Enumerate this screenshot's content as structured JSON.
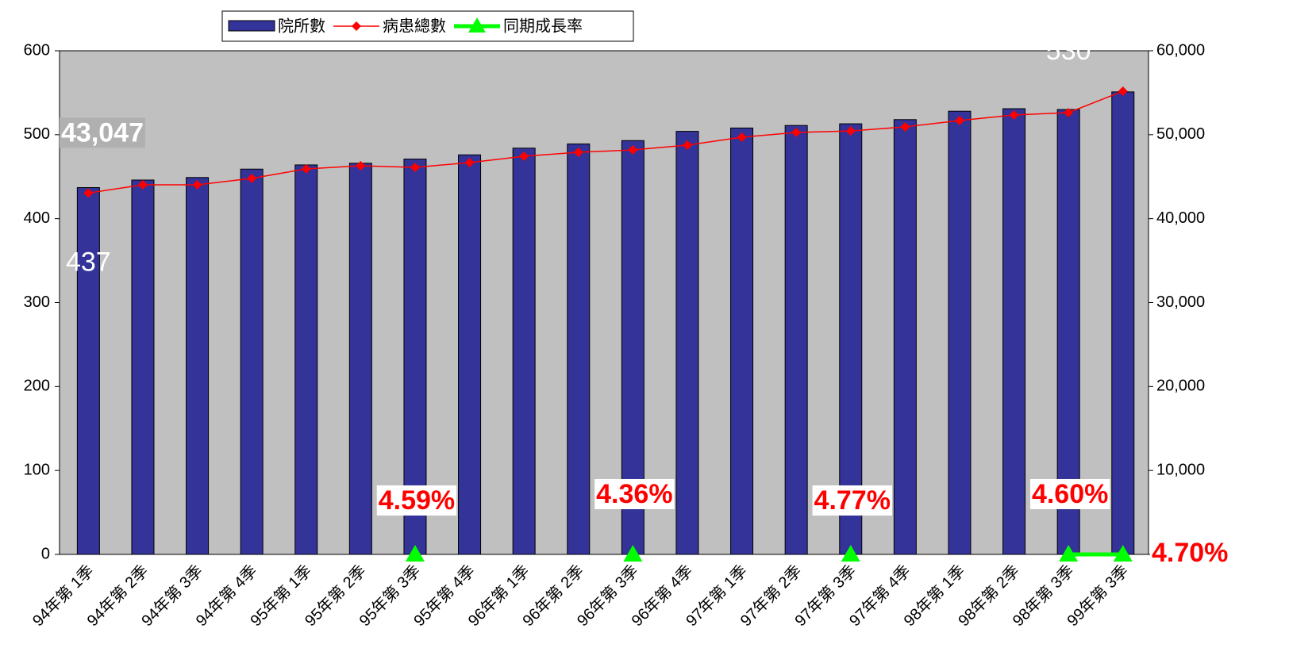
{
  "chart_data": {
    "type": "bar",
    "categories": [
      "94年第 1季",
      "94年第 2季",
      "94年第 3季",
      "94年第 4季",
      "95年第 1季",
      "95年第 2季",
      "95年第 3季",
      "95年第 4季",
      "96年第 1季",
      "96年第 2季",
      "96年第 3季",
      "96年第 4季",
      "97年第 1季",
      "97年第 2季",
      "97年第 3季",
      "97年第 4季",
      "98年第 1季",
      "98年第 2季",
      "98年第 3季",
      "99年第 3季"
    ],
    "series": [
      {
        "name": "院所數",
        "type": "bar",
        "axis": "y",
        "color": "#333399",
        "values": [
          437,
          446,
          449,
          459,
          464,
          466,
          471,
          476,
          484,
          489,
          493,
          504,
          508,
          511,
          513,
          518,
          528,
          531,
          530,
          551
        ],
        "value_labels": [
          "437",
          null,
          null,
          null,
          null,
          null,
          null,
          null,
          null,
          null,
          null,
          null,
          null,
          null,
          null,
          null,
          null,
          null,
          "530",
          null
        ]
      },
      {
        "name": "病患總數",
        "type": "line",
        "axis": "y2",
        "color": "#ff0000",
        "values": [
          43047,
          44030,
          44030,
          44800,
          45920,
          46300,
          46110,
          46680,
          47430,
          47900,
          48190,
          48760,
          49700,
          50270,
          50450,
          50930,
          51690,
          52350,
          52630,
          55180
        ],
        "value_labels": [
          "43,047",
          null,
          null,
          null,
          null,
          null,
          null,
          null,
          null,
          null,
          null,
          null,
          null,
          null,
          null,
          null,
          null,
          null,
          null,
          null
        ]
      },
      {
        "name": "同期成長率",
        "type": "line",
        "axis": "y2",
        "color": "#00ff00",
        "values": [
          null,
          null,
          null,
          null,
          null,
          null,
          4.59,
          null,
          null,
          null,
          4.36,
          null,
          null,
          null,
          4.77,
          null,
          null,
          null,
          4.6,
          4.7
        ],
        "value_labels": [
          null,
          null,
          null,
          null,
          null,
          null,
          "4.59%",
          null,
          null,
          null,
          "4.36%",
          null,
          null,
          null,
          "4.77%",
          null,
          null,
          null,
          "4.60%",
          "4.70%"
        ]
      }
    ],
    "ylim": [
      0,
      600
    ],
    "yticks": [
      0,
      100,
      200,
      300,
      400,
      500,
      600
    ],
    "y2lim": [
      0,
      60000
    ],
    "y2ticks": [
      {
        "value": 0,
        "label": "0"
      },
      {
        "value": 10000,
        "label": "10,000"
      },
      {
        "value": 20000,
        "label": "20,000"
      },
      {
        "value": 30000,
        "label": "30,000"
      },
      {
        "value": 40000,
        "label": "40,000"
      },
      {
        "value": 50000,
        "label": "50,000"
      },
      {
        "value": 60000,
        "label": "60,000"
      }
    ],
    "legend": "top"
  }
}
